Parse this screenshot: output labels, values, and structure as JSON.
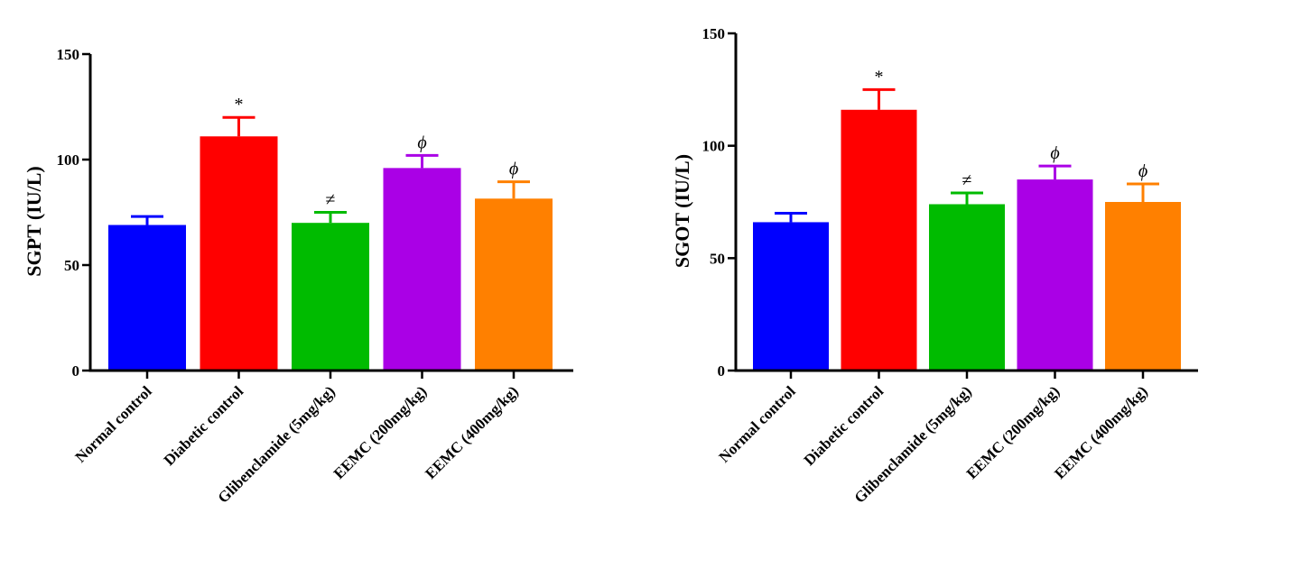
{
  "chart_data": [
    {
      "type": "bar",
      "ylabel": "SGPT (IU/L)",
      "ylim": [
        0,
        150
      ],
      "yticks": [
        0,
        50,
        100,
        150
      ],
      "categories": [
        "Normal control",
        "Diabetic control",
        "Glibenclamide (5mg/kg)",
        "EEMC (200mg/kg)",
        "EEMC (400mg/kg)"
      ],
      "values": [
        69,
        111,
        70,
        96,
        81.5
      ],
      "errors": [
        4,
        9,
        5,
        6,
        8
      ],
      "annotations": [
        "",
        "*",
        "≠",
        "ϕ",
        "ϕ"
      ],
      "colors": [
        "#0000ff",
        "#ff0000",
        "#00bb00",
        "#aa00e6",
        "#ff8000"
      ],
      "grid": false
    },
    {
      "type": "bar",
      "ylabel": "SGOT (IU/L)",
      "ylim": [
        0,
        150
      ],
      "yticks": [
        0,
        50,
        100,
        150
      ],
      "categories": [
        "Normal control",
        "Diabetic control",
        "Glibenclamide (5mg/kg)",
        "EEMC (200mg/kg)",
        "EEMC (400mg/kg)"
      ],
      "values": [
        66,
        116,
        74,
        85,
        75
      ],
      "errors": [
        4,
        9,
        5,
        6,
        8
      ],
      "annotations": [
        "",
        "*",
        "≠",
        "ϕ",
        "ϕ"
      ],
      "colors": [
        "#0000ff",
        "#ff0000",
        "#00bb00",
        "#aa00e6",
        "#ff8000"
      ],
      "grid": false
    }
  ]
}
